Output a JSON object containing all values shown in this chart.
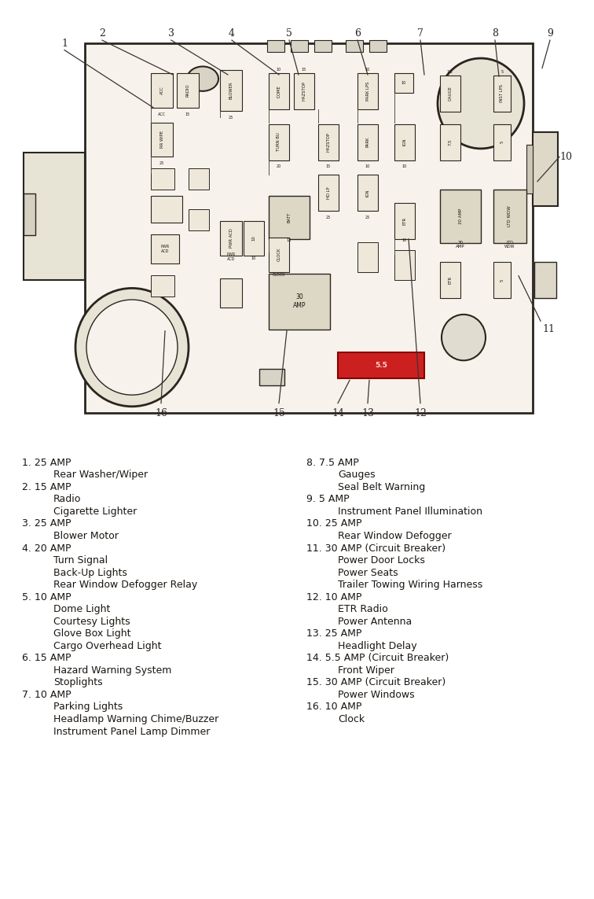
{
  "bg_color": "#ffffff",
  "legend_left": [
    {
      "num": "1.",
      "lines": [
        "25 AMP",
        "Rear Washer/Wiper"
      ]
    },
    {
      "num": "2.",
      "lines": [
        "15 AMP",
        "Radio",
        "Cigarette Lighter"
      ]
    },
    {
      "num": "3.",
      "lines": [
        "25 AMP",
        "Blower Motor"
      ]
    },
    {
      "num": "4.",
      "lines": [
        "20 AMP",
        "Turn Signal",
        "Back-Up Lights",
        "Rear Window Defogger Relay"
      ]
    },
    {
      "num": "5.",
      "lines": [
        "10 AMP",
        "Dome Light",
        "Courtesy Lights",
        "Glove Box Light",
        "Cargo Overhead Light"
      ]
    },
    {
      "num": "6.",
      "lines": [
        "15 AMP",
        "Hazard Warning System",
        "Stoplights"
      ]
    },
    {
      "num": "7.",
      "lines": [
        "10 AMP",
        "Parking Lights",
        "Headlamp Warning Chime/Buzzer",
        "Instrument Panel Lamp Dimmer"
      ]
    }
  ],
  "legend_right": [
    {
      "num": "8.",
      "lines": [
        "7.5 AMP",
        "Gauges",
        "Seal Belt Warning"
      ]
    },
    {
      "num": "9.",
      "lines": [
        "5 AMP",
        "Instrument Panel Illumination"
      ]
    },
    {
      "num": "10.",
      "lines": [
        "25 AMP",
        "Rear Window Defogger"
      ]
    },
    {
      "num": "11.",
      "lines": [
        "30 AMP (Circuit Breaker)",
        "Power Door Locks",
        "Power Seats",
        "Trailer Towing Wiring Harness"
      ]
    },
    {
      "num": "12.",
      "lines": [
        "10 AMP",
        "ETR Radio",
        "Power Antenna"
      ]
    },
    {
      "num": "13.",
      "lines": [
        "25 AMP",
        "Headlight Delay"
      ]
    },
    {
      "num": "14.",
      "lines": [
        "5.5 AMP (Circuit Breaker)",
        "Front Wiper"
      ]
    },
    {
      "num": "15.",
      "lines": [
        "30 AMP (Circuit Breaker)",
        "Power Windows"
      ]
    },
    {
      "num": "16.",
      "lines": [
        "10 AMP",
        "Clock"
      ]
    }
  ],
  "diag_facecolor": "#f7f3ec",
  "fuse_color": "#ede8da",
  "relay_color": "#ddd8c5",
  "line_color": "#2a2520",
  "font_color": "#1a1510"
}
